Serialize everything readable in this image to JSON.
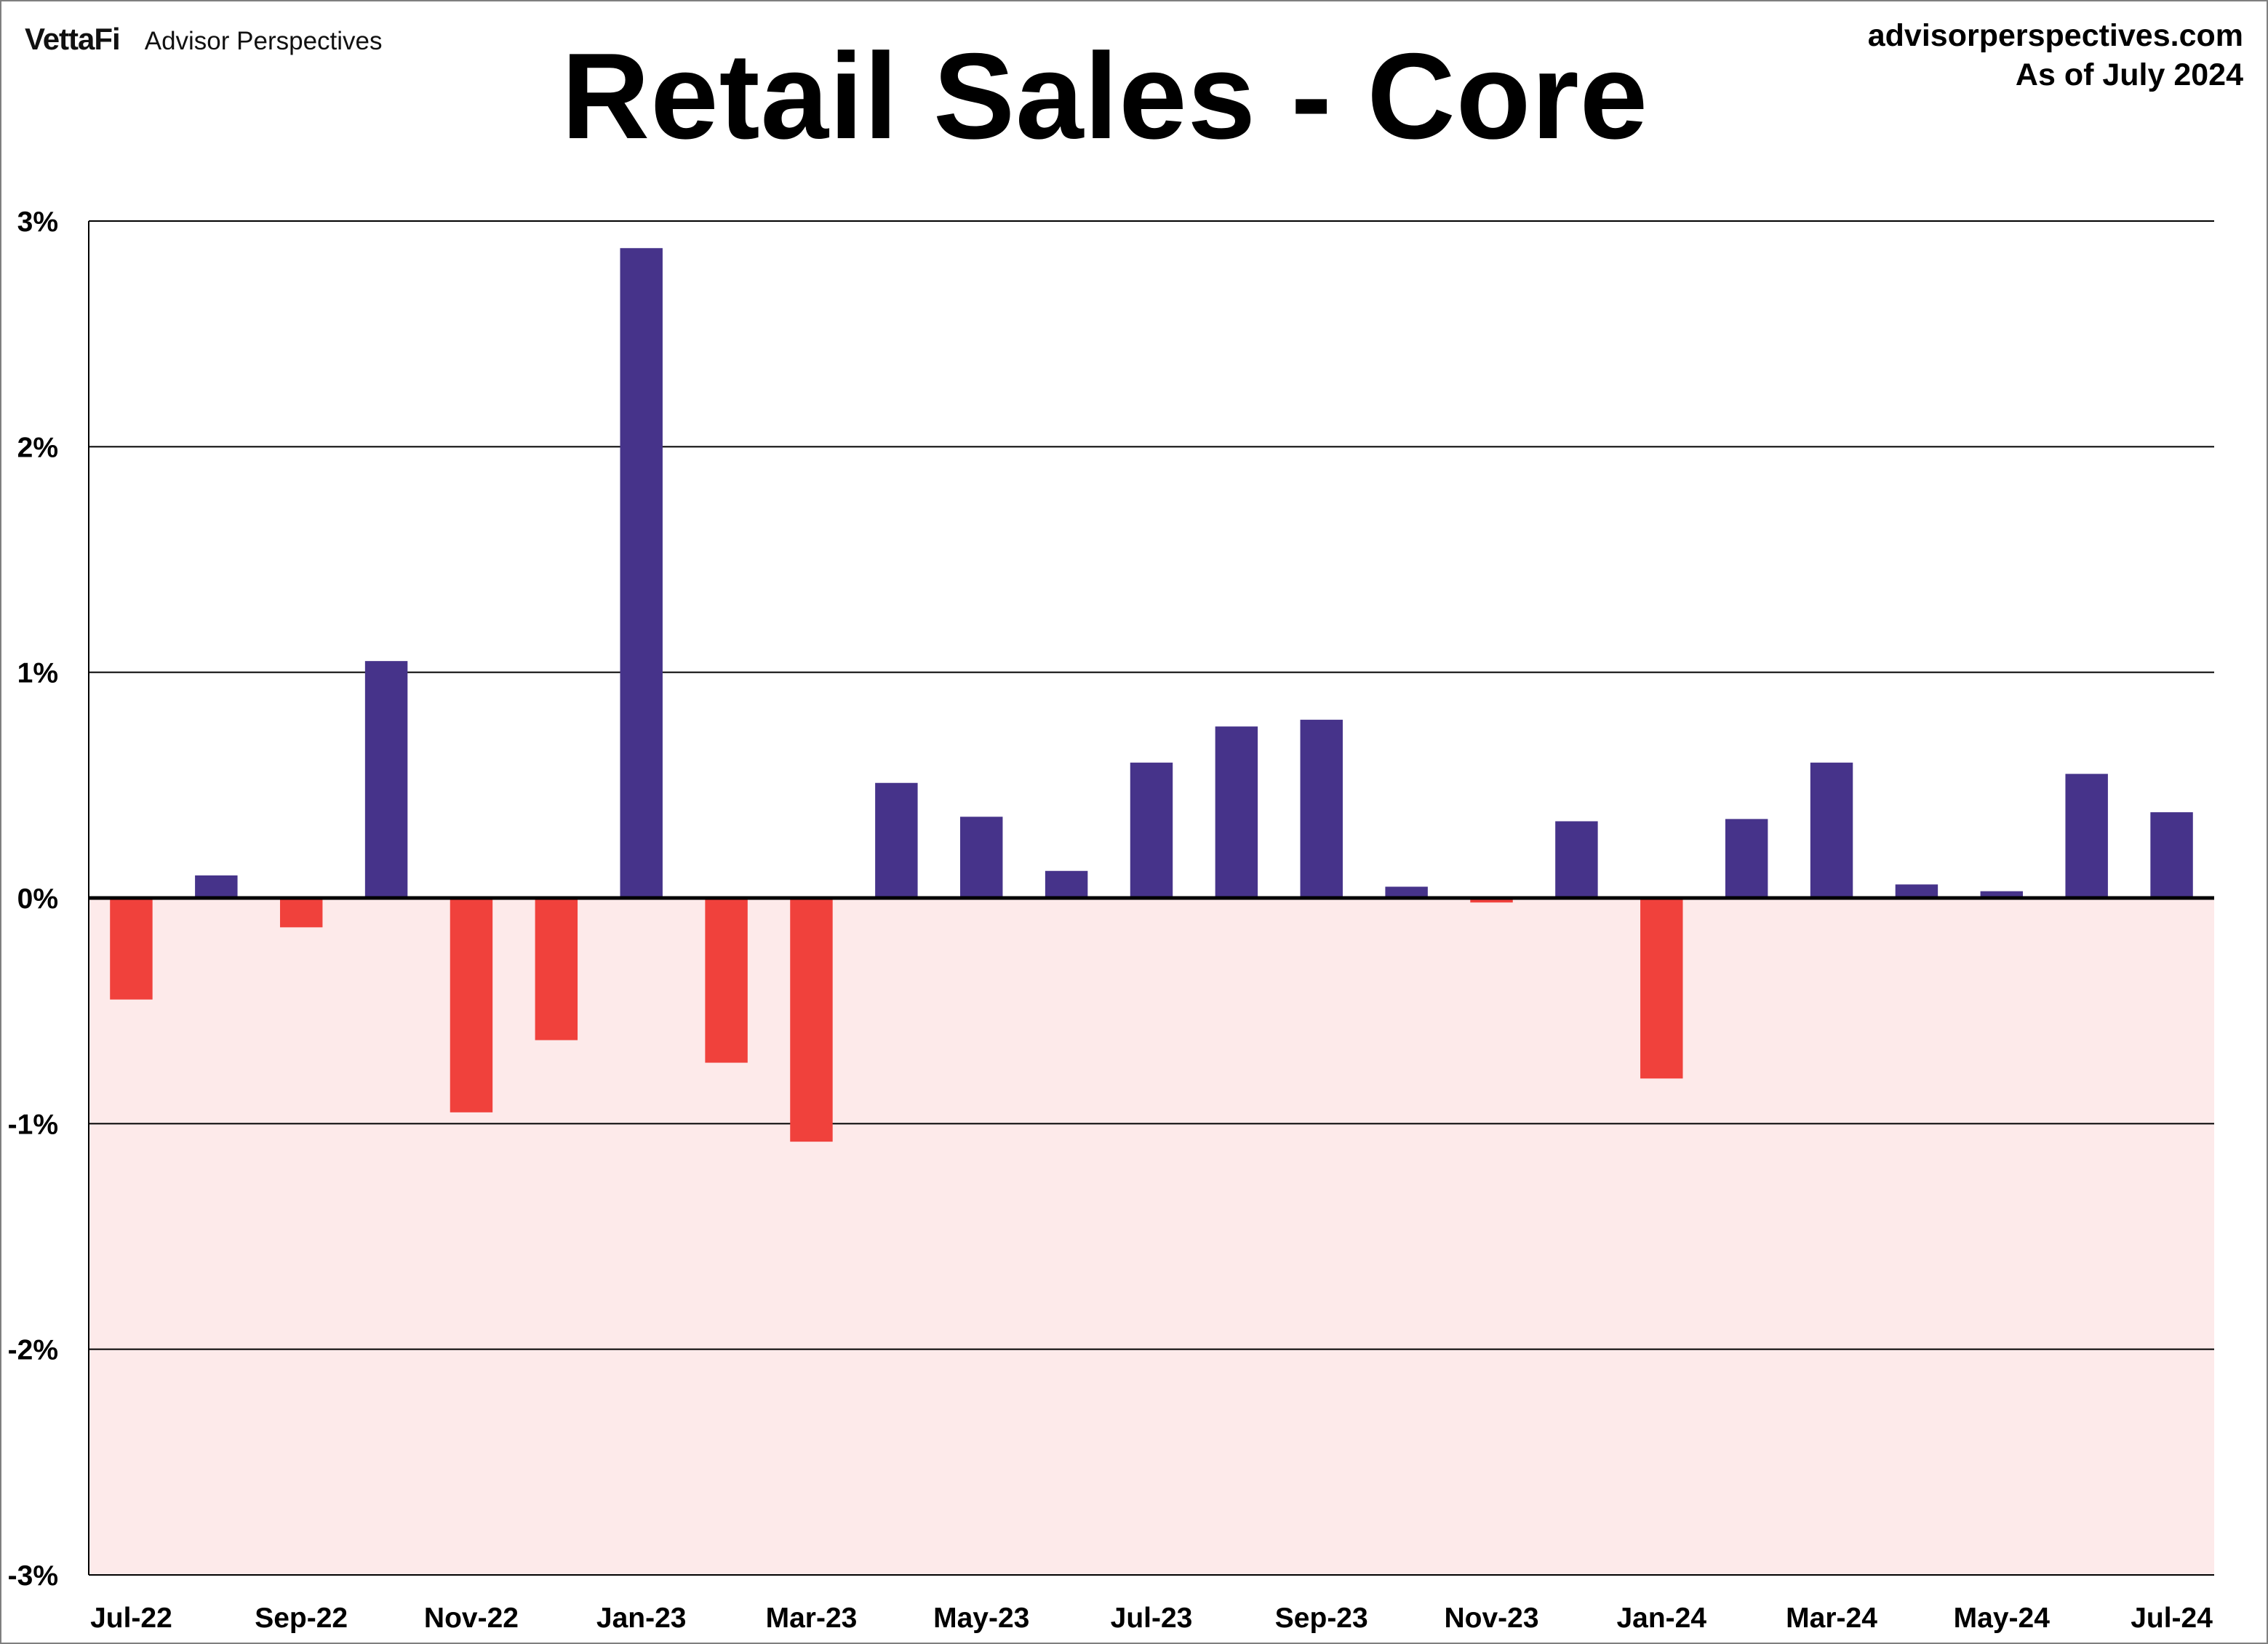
{
  "header": {
    "brand_logo": "VettaFi",
    "brand_name": "Advisor Perspectives",
    "website": "advisorperspectives.com",
    "as_of": "As of July 2024"
  },
  "chart_data": {
    "type": "bar",
    "title": "Retail Sales - Core",
    "xlabel": "",
    "ylabel": "",
    "ylim": [
      -3,
      3
    ],
    "y_ticks": [
      3,
      2,
      1,
      0,
      -1,
      -2,
      -3
    ],
    "y_tick_labels": [
      "3%",
      "2%",
      "1%",
      "0%",
      "-1%",
      "-2%",
      "-3%"
    ],
    "categories": [
      "Jul-22",
      "Aug-22",
      "Sep-22",
      "Oct-22",
      "Nov-22",
      "Dec-22",
      "Jan-23",
      "Feb-23",
      "Mar-23",
      "Apr-23",
      "May-23",
      "Jun-23",
      "Jul-23",
      "Aug-23",
      "Sep-23",
      "Oct-23",
      "Nov-23",
      "Dec-23",
      "Jan-24",
      "Feb-24",
      "Mar-24",
      "Apr-24",
      "May-24",
      "Jun-24",
      "Jul-24"
    ],
    "x_tick_labels": [
      "Jul-22",
      "Sep-22",
      "Nov-22",
      "Jan-23",
      "Mar-23",
      "May-23",
      "Jul-23",
      "Sep-23",
      "Nov-23",
      "Jan-24",
      "Mar-24",
      "May-24",
      "Jul-24"
    ],
    "values": [
      -0.45,
      0.1,
      -0.13,
      1.05,
      -0.95,
      -0.63,
      2.88,
      -0.73,
      -1.08,
      0.51,
      0.36,
      0.12,
      0.6,
      0.76,
      0.79,
      0.05,
      -0.02,
      0.34,
      -0.8,
      0.35,
      0.6,
      0.06,
      0.03,
      0.55,
      0.38
    ],
    "grid": true,
    "legend": "none",
    "colors": {
      "positive": "#46338a",
      "negative": "#f0413c",
      "negative_zone": "#fdeaea",
      "gridline": "#000000"
    }
  }
}
